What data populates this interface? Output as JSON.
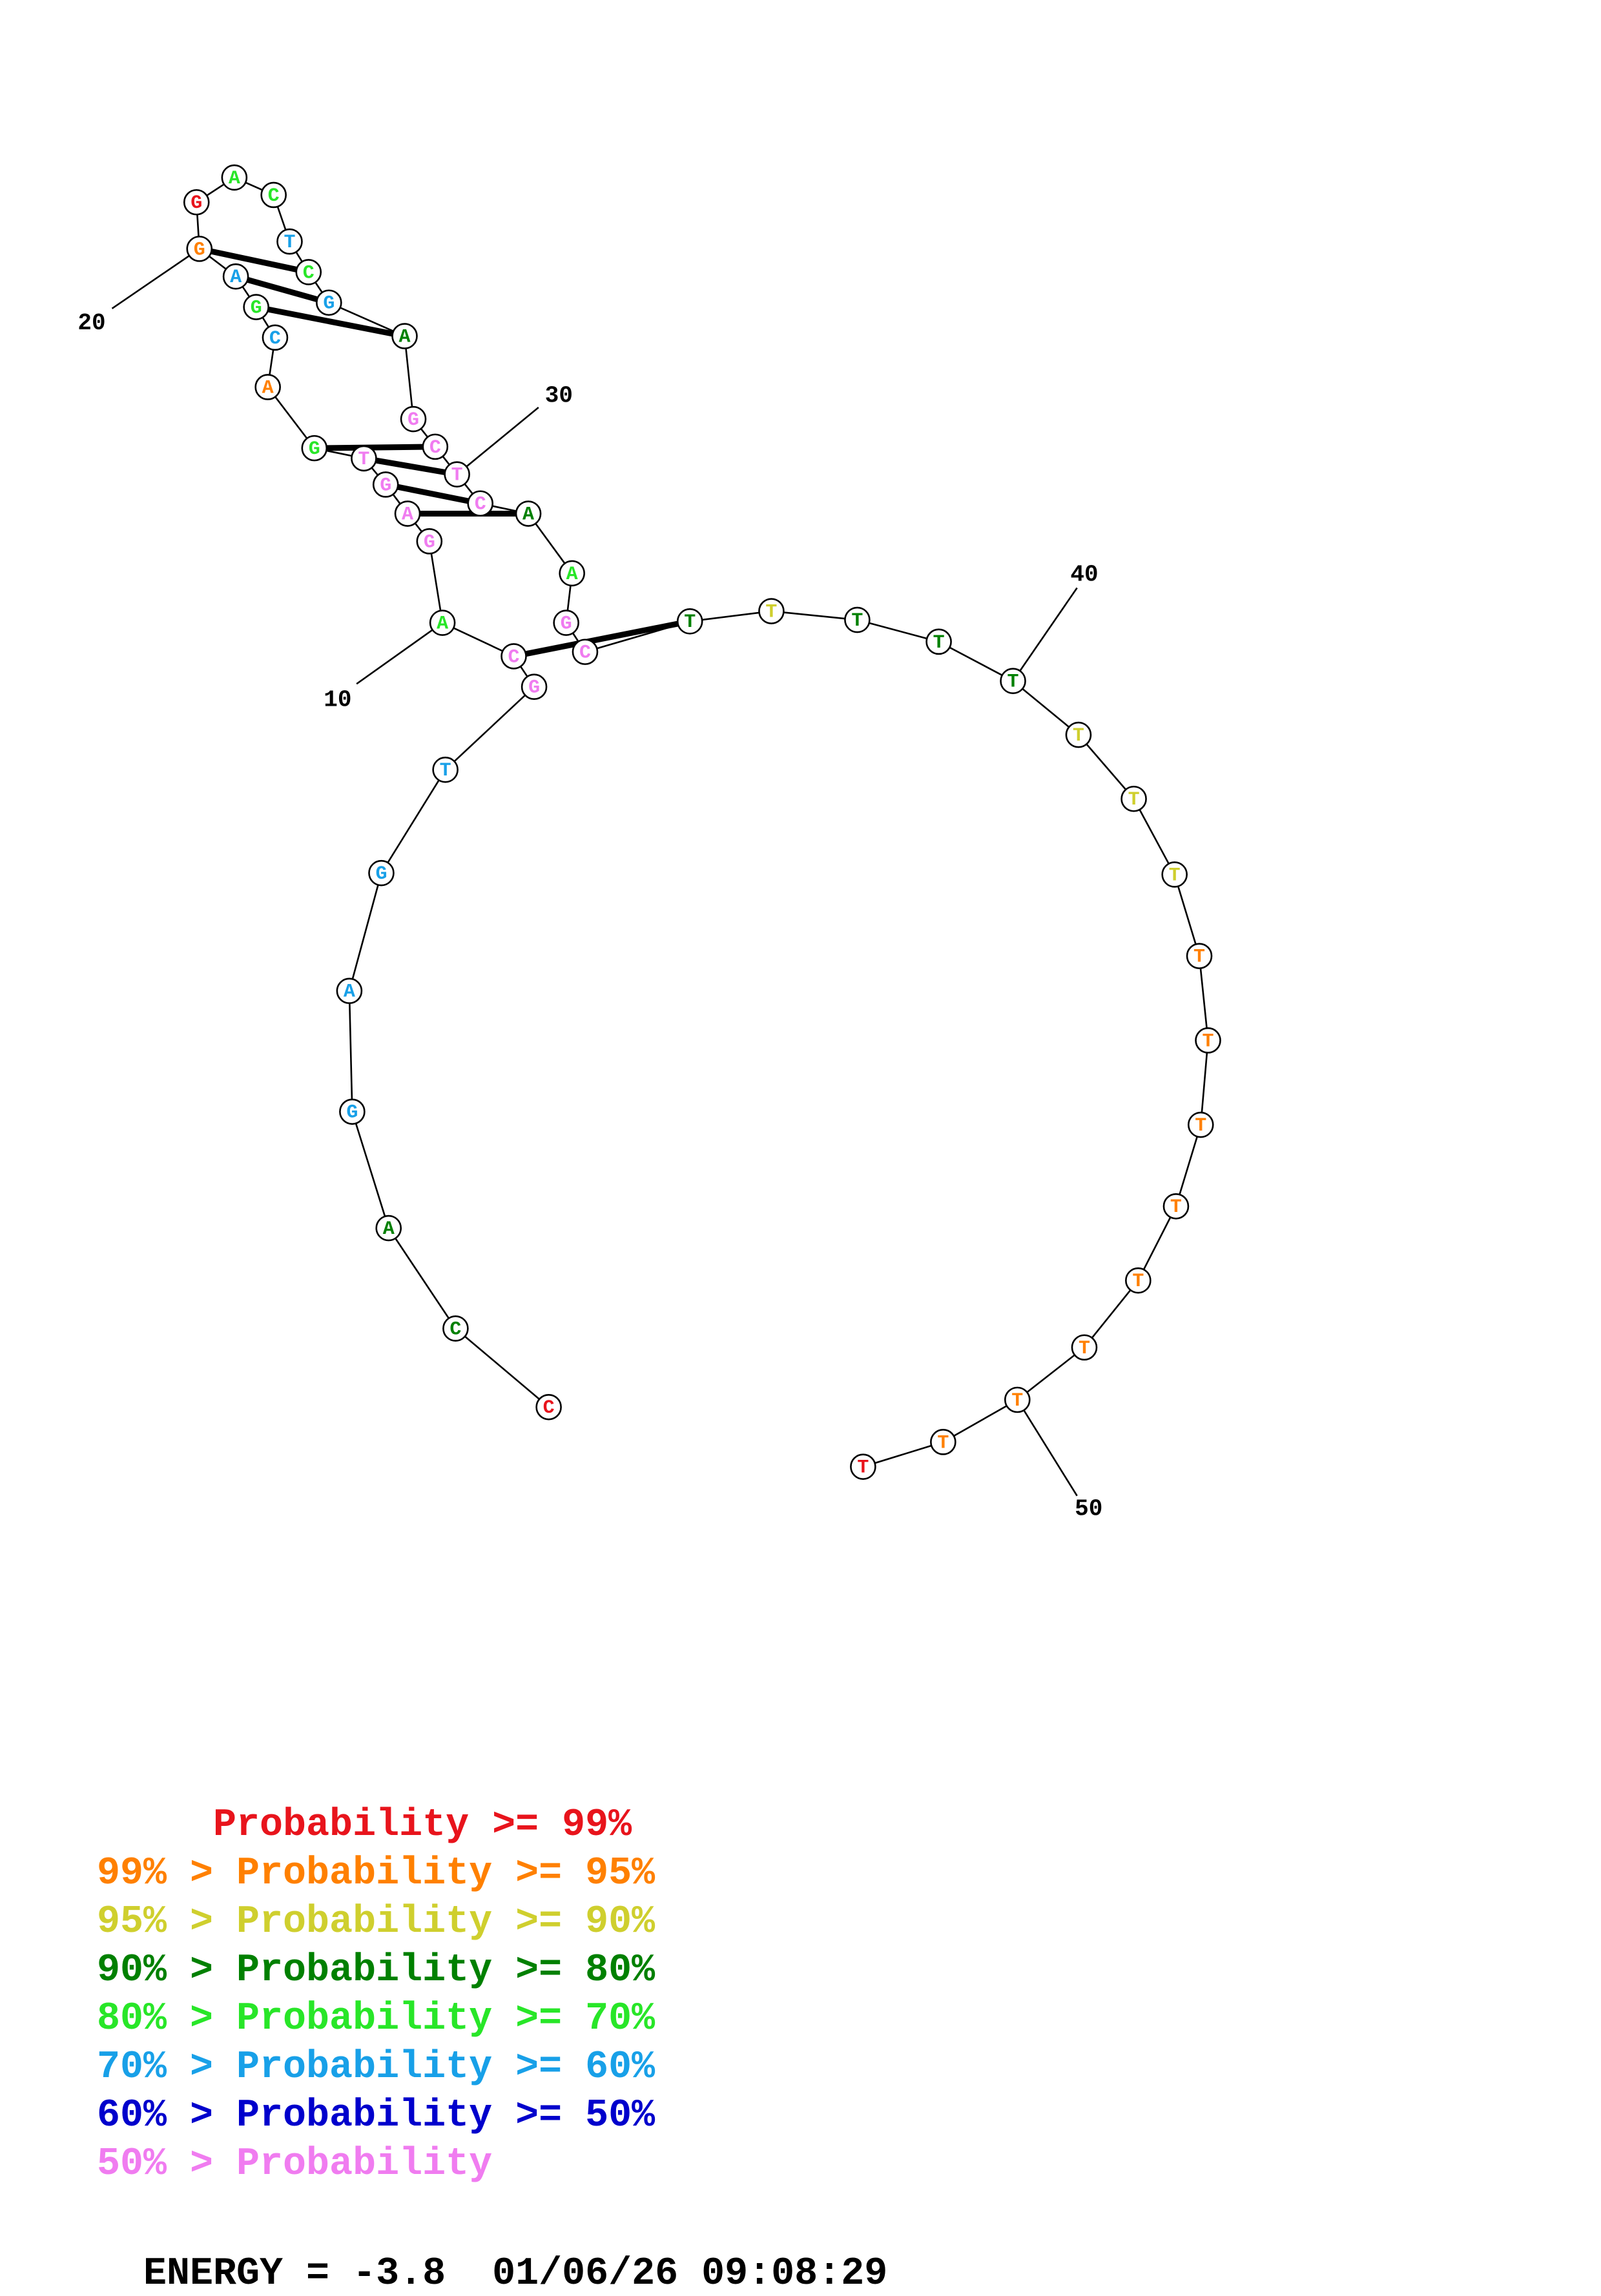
{
  "colors": {
    "p99": "#e8141c",
    "p95": "#ff8000",
    "p90": "#cfcf2e",
    "p80": "#008000",
    "p70": "#28e628",
    "p60": "#18a0e8",
    "p50": "#0000cc",
    "plow": "#f07cf0"
  },
  "nucleotides": [
    {
      "base": "C",
      "color": "p99"
    },
    {
      "base": "C",
      "color": "p80"
    },
    {
      "base": "A",
      "color": "p80"
    },
    {
      "base": "G",
      "color": "p60"
    },
    {
      "base": "A",
      "color": "p60"
    },
    {
      "base": "G",
      "color": "p60"
    },
    {
      "base": "T",
      "color": "p60"
    },
    {
      "base": "G",
      "color": "plow"
    },
    {
      "base": "C",
      "color": "plow"
    },
    {
      "base": "A",
      "color": "p70"
    },
    {
      "base": "G",
      "color": "plow"
    },
    {
      "base": "A",
      "color": "plow"
    },
    {
      "base": "G",
      "color": "plow"
    },
    {
      "base": "T",
      "color": "plow"
    },
    {
      "base": "G",
      "color": "p70"
    },
    {
      "base": "A",
      "color": "p95"
    },
    {
      "base": "C",
      "color": "p60"
    },
    {
      "base": "G",
      "color": "p70"
    },
    {
      "base": "A",
      "color": "p60"
    },
    {
      "base": "G",
      "color": "p95"
    },
    {
      "base": "G",
      "color": "p99"
    },
    {
      "base": "A",
      "color": "p70"
    },
    {
      "base": "C",
      "color": "p70"
    },
    {
      "base": "T",
      "color": "p60"
    },
    {
      "base": "C",
      "color": "p70"
    },
    {
      "base": "G",
      "color": "p60"
    },
    {
      "base": "A",
      "color": "p80"
    },
    {
      "base": "G",
      "color": "plow"
    },
    {
      "base": "C",
      "color": "plow"
    },
    {
      "base": "T",
      "color": "plow"
    },
    {
      "base": "C",
      "color": "plow"
    },
    {
      "base": "A",
      "color": "p80"
    },
    {
      "base": "A",
      "color": "p70"
    },
    {
      "base": "G",
      "color": "plow"
    },
    {
      "base": "C",
      "color": "plow"
    },
    {
      "base": "T",
      "color": "p80"
    },
    {
      "base": "T",
      "color": "p90"
    },
    {
      "base": "T",
      "color": "p80"
    },
    {
      "base": "T",
      "color": "p80"
    },
    {
      "base": "T",
      "color": "p80"
    },
    {
      "base": "T",
      "color": "p90"
    },
    {
      "base": "T",
      "color": "p90"
    },
    {
      "base": "T",
      "color": "p90"
    },
    {
      "base": "T",
      "color": "p95"
    },
    {
      "base": "T",
      "color": "p95"
    },
    {
      "base": "T",
      "color": "p95"
    },
    {
      "base": "T",
      "color": "p95"
    },
    {
      "base": "T",
      "color": "p95"
    },
    {
      "base": "T",
      "color": "p95"
    },
    {
      "base": "T",
      "color": "p95"
    },
    {
      "base": "T",
      "color": "p95"
    },
    {
      "base": "T",
      "color": "p99"
    }
  ],
  "pairs": [
    [
      8,
      35
    ],
    [
      11,
      31
    ],
    [
      12,
      30
    ],
    [
      13,
      29
    ],
    [
      14,
      28
    ],
    [
      17,
      26
    ],
    [
      18,
      25
    ],
    [
      19,
      24
    ]
  ],
  "position_labels": [
    "10",
    "20",
    "30",
    "40",
    "50"
  ],
  "legend": [
    {
      "text": "     Probability >= 99%",
      "color": "p99"
    },
    {
      "text": "99% > Probability >= 95%",
      "color": "p95"
    },
    {
      "text": "95% > Probability >= 90%",
      "color": "p90"
    },
    {
      "text": "90% > Probability >= 80%",
      "color": "p80"
    },
    {
      "text": "80% > Probability >= 70%",
      "color": "p70"
    },
    {
      "text": "70% > Probability >= 60%",
      "color": "p60"
    },
    {
      "text": "60% > Probability >= 50%",
      "color": "p50"
    },
    {
      "text": "50% > Probability",
      "color": "plow"
    }
  ],
  "energy": {
    "label": "ENERGY = -3.8",
    "datetime": "01/06/26 09:08:29"
  }
}
